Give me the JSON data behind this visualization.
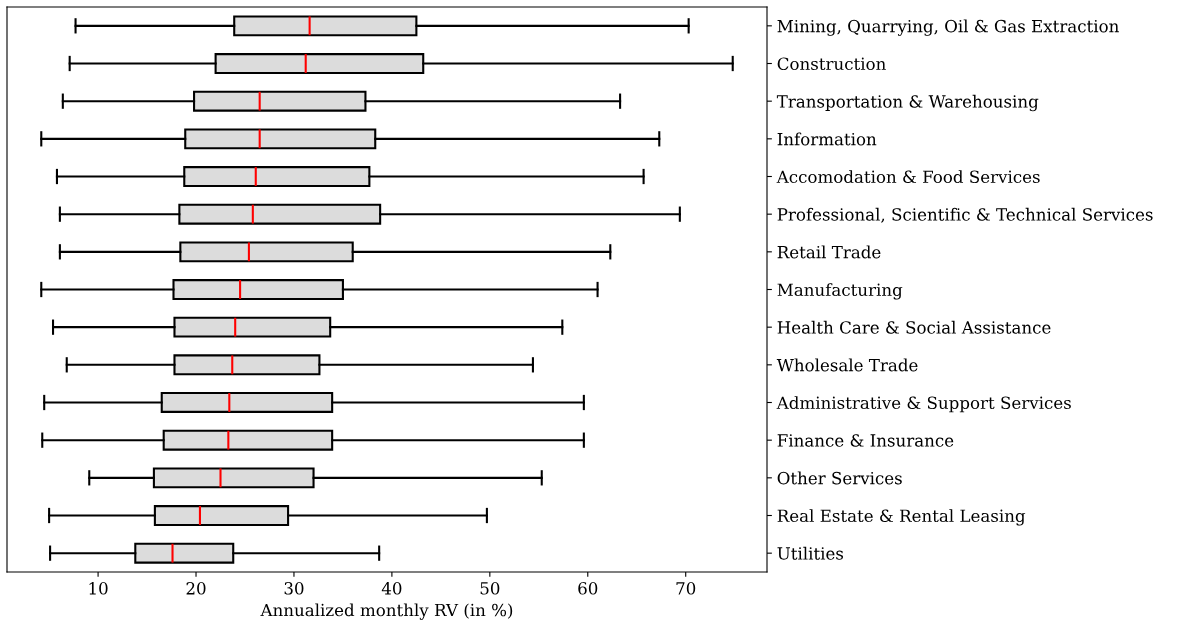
{
  "chart_data": {
    "type": "box",
    "orientation": "horizontal",
    "xlabel": "Annualized monthly RV (in %)",
    "categories": [
      "Mining, Quarrying, Oil & Gas Extraction",
      "Construction",
      "Transportation & Warehousing",
      "Information",
      "Accomodation & Food Services",
      "Professional, Scientific & Technical Services",
      "Retail Trade",
      "Manufacturing",
      "Health Care & Social Assistance",
      "Wholesale Trade",
      "Administrative & Support Services",
      "Finance & Insurance",
      "Other Services",
      "Real Estate & Rental Leasing",
      "Utilities"
    ],
    "boxes": [
      {
        "low": 7.7,
        "q1": 23.9,
        "median": 31.6,
        "q3": 42.5,
        "high": 70.3
      },
      {
        "low": 7.1,
        "q1": 22.0,
        "median": 31.2,
        "q3": 43.2,
        "high": 74.8
      },
      {
        "low": 6.4,
        "q1": 19.8,
        "median": 26.5,
        "q3": 37.3,
        "high": 63.3
      },
      {
        "low": 4.2,
        "q1": 18.9,
        "median": 26.5,
        "q3": 38.3,
        "high": 67.3
      },
      {
        "low": 5.8,
        "q1": 18.8,
        "median": 26.1,
        "q3": 37.7,
        "high": 65.7
      },
      {
        "low": 6.1,
        "q1": 18.3,
        "median": 25.8,
        "q3": 38.8,
        "high": 69.4
      },
      {
        "low": 6.1,
        "q1": 18.4,
        "median": 25.4,
        "q3": 36.0,
        "high": 62.3
      },
      {
        "low": 4.2,
        "q1": 17.7,
        "median": 24.5,
        "q3": 35.0,
        "high": 61.0
      },
      {
        "low": 5.4,
        "q1": 17.8,
        "median": 24.0,
        "q3": 33.7,
        "high": 57.4
      },
      {
        "low": 6.8,
        "q1": 17.8,
        "median": 23.7,
        "q3": 32.6,
        "high": 54.4
      },
      {
        "low": 4.5,
        "q1": 16.5,
        "median": 23.4,
        "q3": 33.9,
        "high": 59.6
      },
      {
        "low": 4.3,
        "q1": 16.7,
        "median": 23.3,
        "q3": 33.9,
        "high": 59.6
      },
      {
        "low": 9.1,
        "q1": 15.7,
        "median": 22.5,
        "q3": 32.0,
        "high": 55.3
      },
      {
        "low": 5.0,
        "q1": 15.8,
        "median": 20.4,
        "q3": 29.4,
        "high": 49.7
      },
      {
        "low": 5.1,
        "q1": 13.8,
        "median": 17.6,
        "q3": 23.8,
        "high": 38.7
      }
    ],
    "color": "#dcdcdc",
    "xlim": [
      0.7,
      78.3
    ],
    "xticks": [
      10,
      20,
      30,
      40,
      50,
      60,
      70
    ],
    "grid": false,
    "legend": false
  }
}
